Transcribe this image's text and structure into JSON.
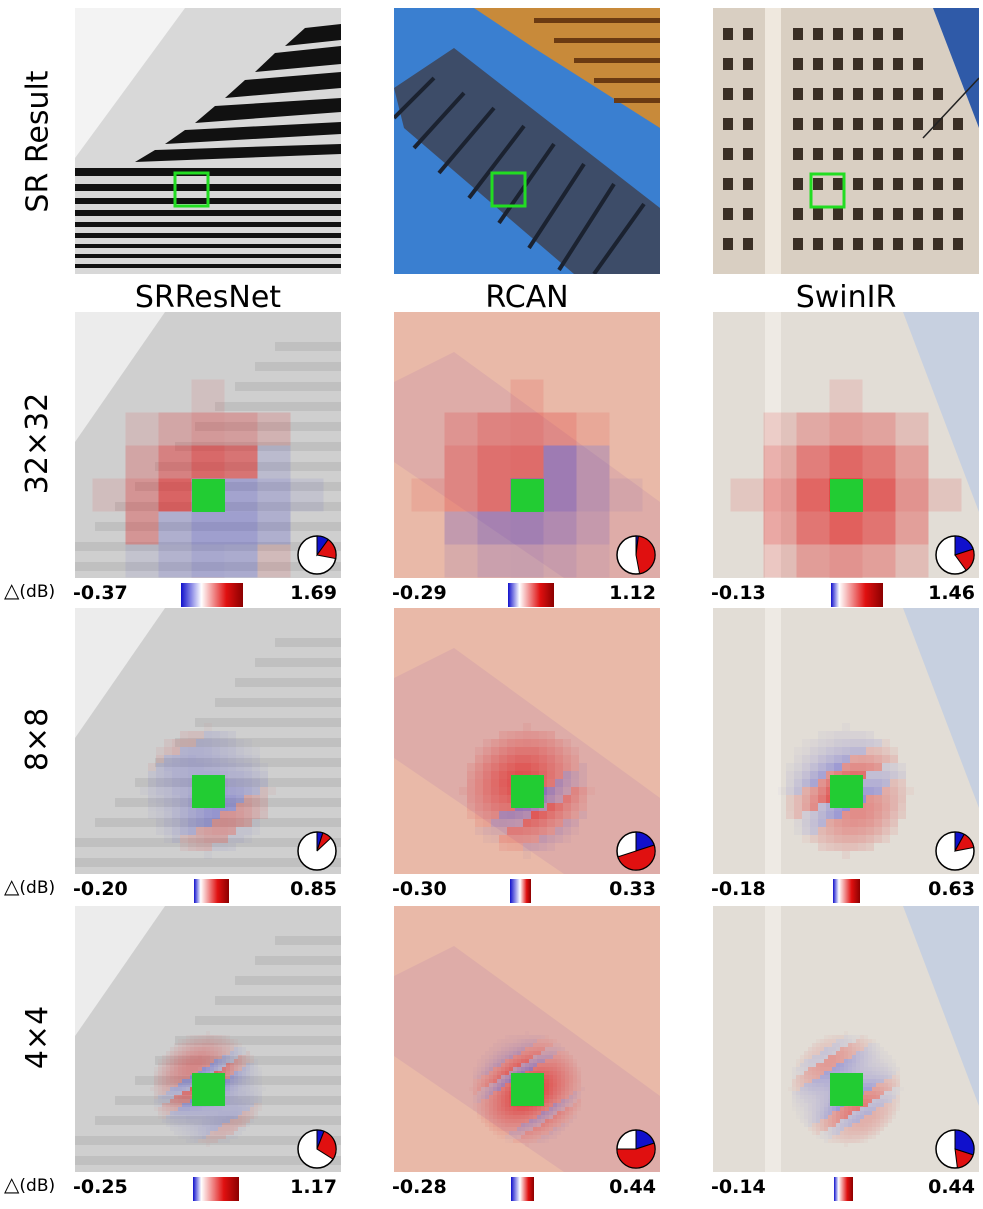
{
  "figure": {
    "row_labels": {
      "sr_result": "SR Result",
      "r32": "32×32",
      "r8": "8×8",
      "r4": "4×4"
    },
    "columns": [
      {
        "name": "SRResNet"
      },
      {
        "name": "RCAN"
      },
      {
        "name": "SwinIR"
      }
    ],
    "delta_label": "△",
    "delta_unit": "(dB)",
    "colors": {
      "highlight_box": "#22dd22",
      "positive": "#e01010",
      "negative": "#1010cc",
      "green_patch": "#22cc33"
    },
    "scales": {
      "r32": [
        {
          "min": "-0.37",
          "max": "1.69",
          "neg_fraction": 0.33,
          "pos_fraction": 0.67
        },
        {
          "min": "-0.29",
          "max": "1.12",
          "neg_fraction": 0.25,
          "pos_fraction": 0.75
        },
        {
          "min": "-0.13",
          "max": "1.46",
          "neg_fraction": 0.16,
          "pos_fraction": 0.84
        }
      ],
      "r8": [
        {
          "min": "-0.20",
          "max": "0.85",
          "neg_fraction": 0.19,
          "pos_fraction": 0.81
        },
        {
          "min": "-0.30",
          "max": "0.33",
          "neg_fraction": 0.48,
          "pos_fraction": 0.52
        },
        {
          "min": "-0.18",
          "max": "0.63",
          "neg_fraction": 0.22,
          "pos_fraction": 0.78
        }
      ],
      "r4": [
        {
          "min": "-0.25",
          "max": "1.17",
          "neg_fraction": 0.18,
          "pos_fraction": 0.82
        },
        {
          "min": "-0.28",
          "max": "0.44",
          "neg_fraction": 0.39,
          "pos_fraction": 0.61
        },
        {
          "min": "-0.14",
          "max": "0.44",
          "neg_fraction": 0.24,
          "pos_fraction": 0.76
        }
      ]
    },
    "pies": {
      "r32": [
        {
          "blue": 0.1,
          "red": 0.18
        },
        {
          "blue": 0.02,
          "red": 0.45
        },
        {
          "blue": 0.2,
          "red": 0.2
        }
      ],
      "r8": [
        {
          "blue": 0.05,
          "red": 0.08
        },
        {
          "blue": 0.2,
          "red": 0.5
        },
        {
          "blue": 0.08,
          "red": 0.14
        }
      ],
      "r4": [
        {
          "blue": 0.06,
          "red": 0.28
        },
        {
          "blue": 0.2,
          "red": 0.55
        },
        {
          "blue": 0.3,
          "red": 0.18
        }
      ]
    }
  }
}
